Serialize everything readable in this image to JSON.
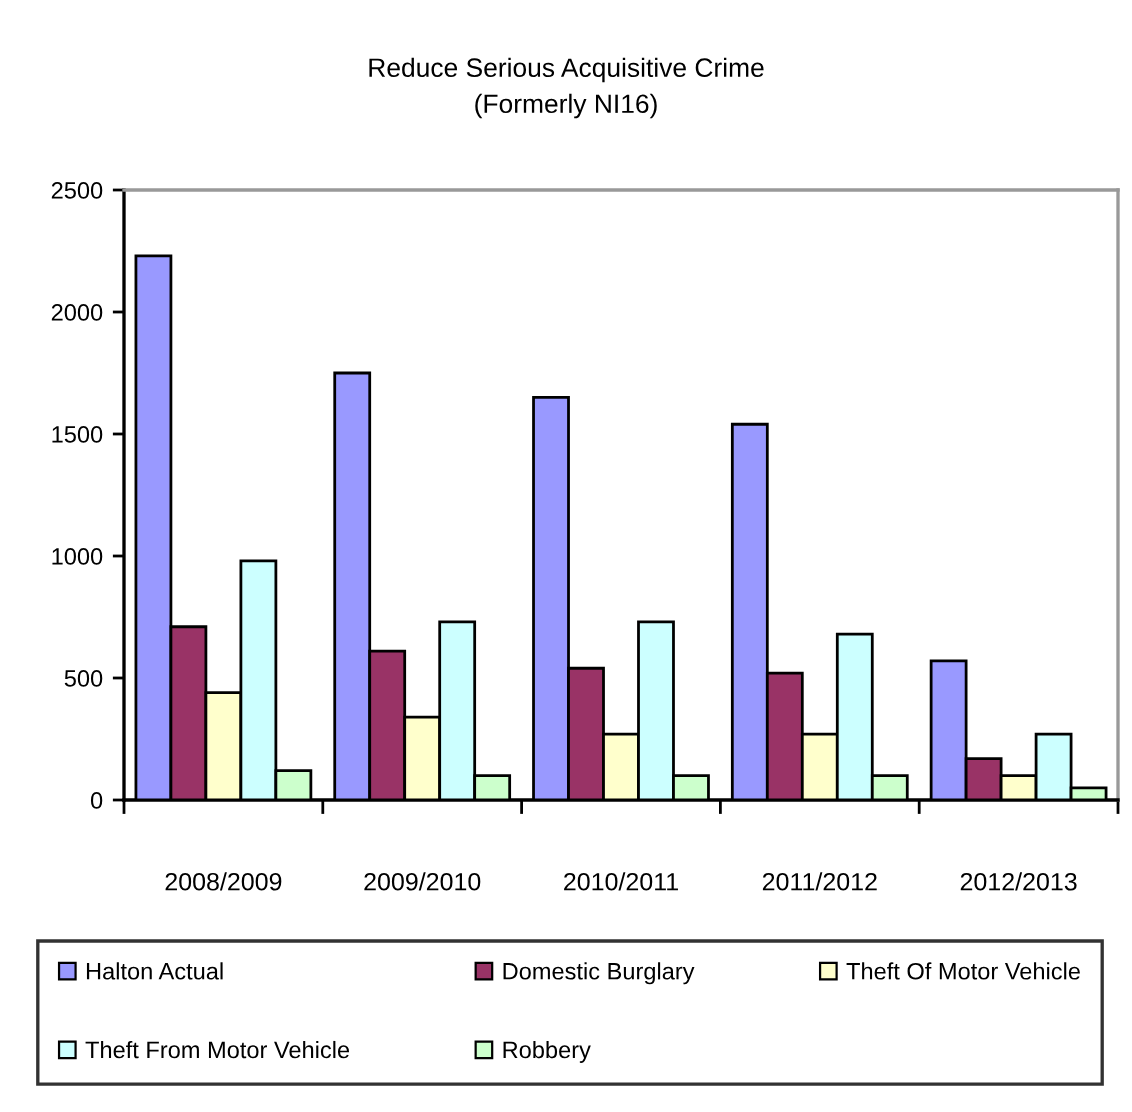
{
  "chart_data": {
    "type": "bar",
    "title": "Reduce Serious Acquisitive Crime\n(Formerly NI16)",
    "categories": [
      "2008/2009",
      "2009/2010",
      "2010/2011",
      "2011/2012",
      "2012/2013"
    ],
    "series": [
      {
        "name": "Halton Actual",
        "color": "#9999ff",
        "values": [
          2230,
          1750,
          1650,
          1540,
          570
        ]
      },
      {
        "name": "Domestic Burglary",
        "color": "#993366",
        "values": [
          710,
          610,
          540,
          520,
          170
        ]
      },
      {
        "name": "Theft Of Motor Vehicle",
        "color": "#ffffcc",
        "values": [
          440,
          340,
          270,
          270,
          100
        ]
      },
      {
        "name": "Theft From Motor Vehicle",
        "color": "#ccffff",
        "values": [
          980,
          730,
          730,
          680,
          270
        ]
      },
      {
        "name": "Robbery",
        "color": "#ccffcc",
        "values": [
          120,
          100,
          100,
          100,
          50
        ]
      }
    ],
    "ylim": [
      0,
      2500
    ],
    "yticks": [
      0,
      500,
      1000,
      1500,
      2000,
      2500
    ],
    "grid": false,
    "legend": "bottom"
  }
}
